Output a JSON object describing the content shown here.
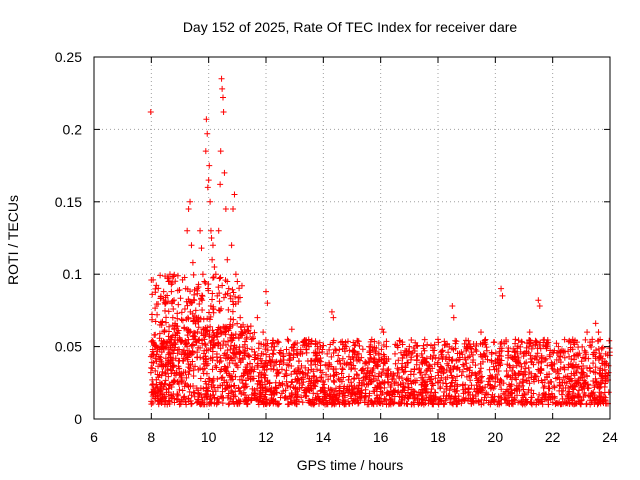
{
  "chart_data": {
    "type": "scatter",
    "title": "Day 152 of 2025, Rate Of TEC Index for receiver dare",
    "xlabel": "GPS time / hours",
    "ylabel": "ROTI / TECUs",
    "xlim": [
      6,
      24
    ],
    "ylim": [
      0,
      0.25
    ],
    "x_ticks": [
      6,
      8,
      10,
      12,
      14,
      16,
      18,
      20,
      22,
      24
    ],
    "x_tick_labels": [
      "6",
      "8",
      "10",
      "12",
      "14",
      "16",
      "18",
      "20",
      "22",
      "24"
    ],
    "y_ticks": [
      0,
      0.05,
      0.1,
      0.15,
      0.2,
      0.25
    ],
    "y_tick_labels": [
      "0",
      "0.05",
      "0.1",
      "0.15",
      "0.2",
      "0.25"
    ],
    "grid": true,
    "marker": "+",
    "series": [
      {
        "name": "ROTI",
        "color": "#ff0000",
        "points": [
          [
            7.98,
            0.212
          ],
          [
            8.0,
            0.096
          ],
          [
            8.05,
            0.048
          ],
          [
            8.1,
            0.058
          ],
          [
            8.2,
            0.072
          ],
          [
            8.3,
            0.065
          ],
          [
            8.4,
            0.052
          ],
          [
            8.5,
            0.08
          ],
          [
            8.6,
            0.095
          ],
          [
            8.65,
            0.1
          ],
          [
            8.7,
            0.088
          ],
          [
            8.75,
            0.07
          ],
          [
            8.8,
            0.062
          ],
          [
            8.9,
            0.06
          ],
          [
            9.0,
            0.055
          ],
          [
            9.1,
            0.068
          ],
          [
            9.2,
            0.09
          ],
          [
            9.25,
            0.13
          ],
          [
            9.3,
            0.145
          ],
          [
            9.35,
            0.15
          ],
          [
            9.4,
            0.12
          ],
          [
            9.45,
            0.108
          ],
          [
            9.5,
            0.082
          ],
          [
            9.55,
            0.075
          ],
          [
            9.6,
            0.09
          ],
          [
            9.65,
            0.07
          ],
          [
            9.7,
            0.13
          ],
          [
            9.75,
            0.118
          ],
          [
            9.8,
            0.1
          ],
          [
            9.85,
            0.095
          ],
          [
            9.9,
            0.185
          ],
          [
            9.92,
            0.207
          ],
          [
            9.95,
            0.197
          ],
          [
            9.97,
            0.16
          ],
          [
            10.0,
            0.165
          ],
          [
            10.02,
            0.175
          ],
          [
            10.05,
            0.15
          ],
          [
            10.08,
            0.13
          ],
          [
            10.1,
            0.125
          ],
          [
            10.12,
            0.11
          ],
          [
            10.15,
            0.12
          ],
          [
            10.18,
            0.098
          ],
          [
            10.2,
            0.105
          ],
          [
            10.25,
            0.1
          ],
          [
            10.3,
            0.085
          ],
          [
            10.35,
            0.13
          ],
          [
            10.4,
            0.162
          ],
          [
            10.42,
            0.185
          ],
          [
            10.45,
            0.235
          ],
          [
            10.47,
            0.228
          ],
          [
            10.5,
            0.222
          ],
          [
            10.52,
            0.212
          ],
          [
            10.55,
            0.17
          ],
          [
            10.6,
            0.145
          ],
          [
            10.65,
            0.11
          ],
          [
            10.7,
            0.09
          ],
          [
            10.75,
            0.085
          ],
          [
            10.8,
            0.12
          ],
          [
            10.85,
            0.145
          ],
          [
            10.9,
            0.155
          ],
          [
            10.95,
            0.1
          ],
          [
            11.0,
            0.095
          ],
          [
            11.1,
            0.07
          ],
          [
            11.2,
            0.065
          ],
          [
            11.3,
            0.06
          ],
          [
            11.5,
            0.055
          ],
          [
            11.7,
            0.07
          ],
          [
            11.9,
            0.06
          ],
          [
            12.0,
            0.088
          ],
          [
            12.05,
            0.08
          ],
          [
            12.3,
            0.05
          ],
          [
            12.6,
            0.045
          ],
          [
            12.9,
            0.062
          ],
          [
            13.2,
            0.045
          ],
          [
            13.5,
            0.05
          ],
          [
            13.8,
            0.04
          ],
          [
            14.3,
            0.074
          ],
          [
            14.35,
            0.07
          ],
          [
            14.8,
            0.05
          ],
          [
            15.2,
            0.045
          ],
          [
            15.6,
            0.05
          ],
          [
            16.05,
            0.062
          ],
          [
            16.1,
            0.06
          ],
          [
            16.5,
            0.045
          ],
          [
            17.0,
            0.05
          ],
          [
            17.5,
            0.04
          ],
          [
            18.0,
            0.055
          ],
          [
            18.5,
            0.078
          ],
          [
            18.55,
            0.07
          ],
          [
            19.0,
            0.05
          ],
          [
            19.5,
            0.06
          ],
          [
            20.2,
            0.09
          ],
          [
            20.25,
            0.085
          ],
          [
            20.7,
            0.055
          ],
          [
            21.2,
            0.06
          ],
          [
            21.5,
            0.082
          ],
          [
            21.55,
            0.078
          ],
          [
            21.8,
            0.05
          ],
          [
            22.2,
            0.05
          ],
          [
            22.7,
            0.055
          ],
          [
            23.2,
            0.06
          ],
          [
            23.5,
            0.066
          ],
          [
            23.6,
            0.06
          ],
          [
            23.85,
            0.045
          ]
        ],
        "dense_band": {
          "x_range": [
            7.98,
            24.0
          ],
          "y_range": [
            0.005,
            0.055
          ],
          "description": "continuous band of ROTI values"
        }
      }
    ]
  }
}
